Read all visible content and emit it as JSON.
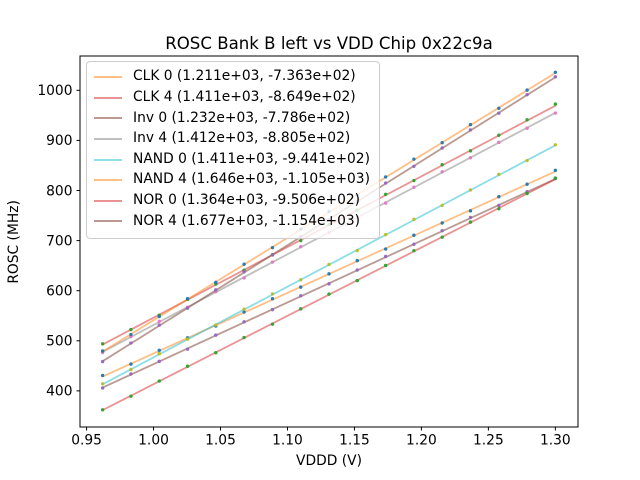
{
  "figure": {
    "background": "#ffffff",
    "spine_color": "#000000",
    "tick_color": "#000000",
    "text_color": "#000000",
    "legend_frame_color": "#cccccc",
    "legend_background": "rgba(255,255,255,0.8)"
  },
  "chart_data": {
    "type": "scatter",
    "subtype": "scatter points with linear fit lines",
    "title": "ROSC Bank B left vs VDD Chip 0x22c9a",
    "xlabel": "VDDD (V)",
    "ylabel": "ROSC (MHz)",
    "xlim": [
      0.9451,
      1.3169
    ],
    "ylim": [
      327.9,
      1068.5
    ],
    "grid": false,
    "legend_position": "upper left",
    "xticks": [
      0.95,
      1.0,
      1.05,
      1.1,
      1.15,
      1.2,
      1.25,
      1.3
    ],
    "xtick_labels": [
      "0.95",
      "1.00",
      "1.05",
      "1.10",
      "1.15",
      "1.20",
      "1.25",
      "1.30"
    ],
    "yticks": [
      400,
      500,
      600,
      700,
      800,
      900,
      1000
    ],
    "ytick_labels": [
      "400",
      "500",
      "600",
      "700",
      "800",
      "900",
      "1000"
    ],
    "x": [
      0.962,
      0.9831,
      1.0043,
      1.0254,
      1.0465,
      1.0676,
      1.0888,
      1.1099,
      1.131,
      1.1521,
      1.1733,
      1.1944,
      1.2155,
      1.2366,
      1.2578,
      1.2789,
      1.3
    ],
    "series": [
      {
        "name": "CLK 0",
        "legend_label": "CLK 0 (1.211e+03, -7.363e+02)",
        "slope": 1211.0,
        "intercept": -736.3,
        "line_color": "#ff7f0e",
        "line_alpha": 0.5,
        "marker_color": "#1f77b4",
        "y": [
          430.8,
          453.4,
          481.0,
          505.8,
          529.5,
          557.4,
          584.0,
          607.1,
          633.6,
          660.0,
          683.2,
          710.7,
          735.2,
          759.4,
          787.6,
          812.5,
          840.2
        ]
      },
      {
        "name": "CLK 4",
        "legend_label": "CLK 4 (1.411e+03, -8.649e+02)",
        "slope": 1411.0,
        "intercept": -864.9,
        "line_color": "#d62728",
        "line_alpha": 0.5,
        "marker_color": "#2ca02c",
        "y": [
          493.9,
          522.5,
          551.0,
          582.7,
          613.3,
          640.8,
          671.8,
          699.9,
          731.9,
          760.9,
          792.4,
          819.9,
          851.4,
          879.1,
          910.4,
          941.1,
          972.5
        ]
      },
      {
        "name": "Inv 0",
        "legend_label": "Inv 0 (1.232e+03, -7.786e+02)",
        "slope": 1232.0,
        "intercept": -778.6,
        "line_color": "#8c564b",
        "line_alpha": 0.6,
        "marker_color": "#9467bd",
        "y": [
          405.8,
          433.7,
          458.9,
          483.3,
          511.4,
          537.9,
          562.2,
          589.7,
          613.7,
          641.2,
          668.3,
          692.7,
          719.7,
          746.2,
          770.2,
          797.5,
          824.0
        ]
      },
      {
        "name": "Inv 4",
        "legend_label": "Inv 4 (1.412e+03, -8.805e+02)",
        "slope": 1412.0,
        "intercept": -880.5,
        "line_color": "#7f7f7f",
        "line_alpha": 0.5,
        "marker_color": "#e377c2",
        "y": [
          476.6,
          508.3,
          538.9,
          567.0,
          598.1,
          625.5,
          657.2,
          687.8,
          715.9,
          747.1,
          774.9,
          806.5,
          837.4,
          865.3,
          896.2,
          924.3,
          954.6
        ]
      },
      {
        "name": "NAND 0",
        "legend_label": "NAND 0 (1.411e+03, -9.441e+02)",
        "slope": 1411.0,
        "intercept": -944.1,
        "line_color": "#17becf",
        "line_alpha": 0.5,
        "marker_color": "#bcbd22",
        "y": [
          414.2,
          442.7,
          474.2,
          503.3,
          531.4,
          563.1,
          593.6,
          621.8,
          652.5,
          680.2,
          711.9,
          742.4,
          770.2,
          801.1,
          832.2,
          859.8,
          891.3
        ]
      },
      {
        "name": "NAND 4",
        "legend_label": "NAND 4 (1.646e+03, -1.105e+03)",
        "slope": 1646.0,
        "intercept": -1105.0,
        "line_color": "#ff7f0e",
        "line_alpha": 0.5,
        "marker_color": "#1f77b4",
        "y": [
          479.6,
          512.5,
          548.4,
          584.1,
          616.6,
          652.9,
          685.9,
          722.7,
          758.0,
          790.9,
          827.1,
          862.6,
          895.4,
          931.5,
          964.1,
          1000.5,
          1036.0
        ]
      },
      {
        "name": "NOR 0",
        "legend_label": "NOR 0 (1.364e+03, -9.506e+02)",
        "slope": 1364.0,
        "intercept": -950.6,
        "line_color": "#d62728",
        "line_alpha": 0.5,
        "marker_color": "#2ca02c",
        "y": [
          362.3,
          389.4,
          419.7,
          449.2,
          476.2,
          506.5,
          533.2,
          563.7,
          593.2,
          620.1,
          650.3,
          679.9,
          706.9,
          736.9,
          763.7,
          794.0,
          824.8
        ]
      },
      {
        "name": "NOR 4",
        "legend_label": "NOR 4 (1.677e+03, -1.154e+03)",
        "slope": 1677.0,
        "intercept": -1154.0,
        "line_color": "#8c564b",
        "line_alpha": 0.6,
        "marker_color": "#9467bd",
        "y": [
          458.4,
          495.5,
          531.3,
          565.1,
          601.7,
          637.9,
          671.3,
          708.2,
          741.6,
          778.5,
          814.9,
          848.3,
          884.9,
          921.0,
          954.4,
          991.3,
          1026.9
        ]
      }
    ]
  }
}
